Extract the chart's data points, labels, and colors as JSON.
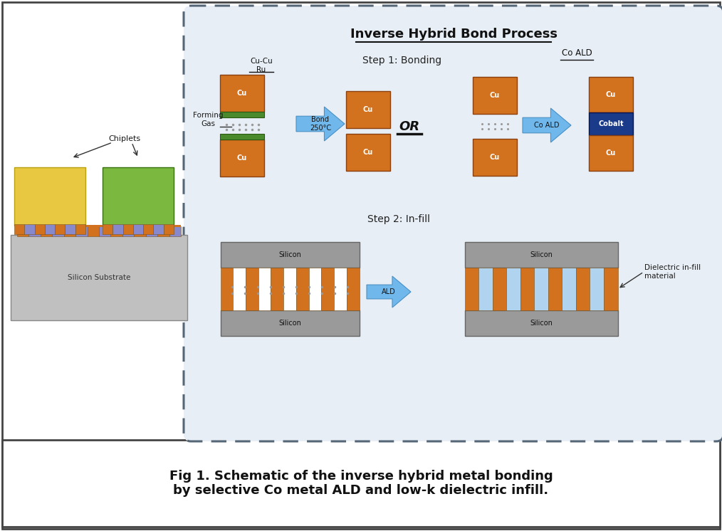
{
  "title": "Inverse Hybrid Bond Process",
  "step1_label": "Step 1: Bonding",
  "step2_label": "Step 2: In-fill",
  "cu_cu_ru_label": "Cu-Cu\nRu",
  "forming_gas_label": "Forming\nGas",
  "bond_label": "Bond\n250°C",
  "co_ald_label": "Co ALD",
  "ald_label": "ALD",
  "or_label": "OR",
  "dielectric_label": "Dielectric in-fill\nmaterial",
  "chiplets_label": "Chiplets",
  "silicon_substrate_label": "Silicon Substrate",
  "silicon_top_label": "Silicon",
  "silicon_bot_label": "Silicon",
  "cu_label": "Cu",
  "cobalt_label": "Cobalt",
  "co_ald_arrow_label": "Co ALD",
  "fig_caption": "Fig 1. Schematic of the inverse hybrid metal bonding\nby selective Co metal ALD and low-k dielectric infill.",
  "colors": {
    "cu_orange": "#D2711E",
    "silicon_gray": "#9A9A9A",
    "light_gray": "#C0C0C0",
    "green_layer": "#4A8A2C",
    "cobalt_blue": "#1A3A8A",
    "arrow_blue": "#70B8EC",
    "background": "#FFFFFF",
    "dashed_box_bg": "#E8EEF5",
    "yellow_chip": "#E8C840",
    "green_chip": "#7AB840",
    "light_blue_dielectric": "#B0D4F0",
    "text_dark": "#1A1A1A",
    "white": "#FFFFFF",
    "dot_gray": "#999999"
  }
}
